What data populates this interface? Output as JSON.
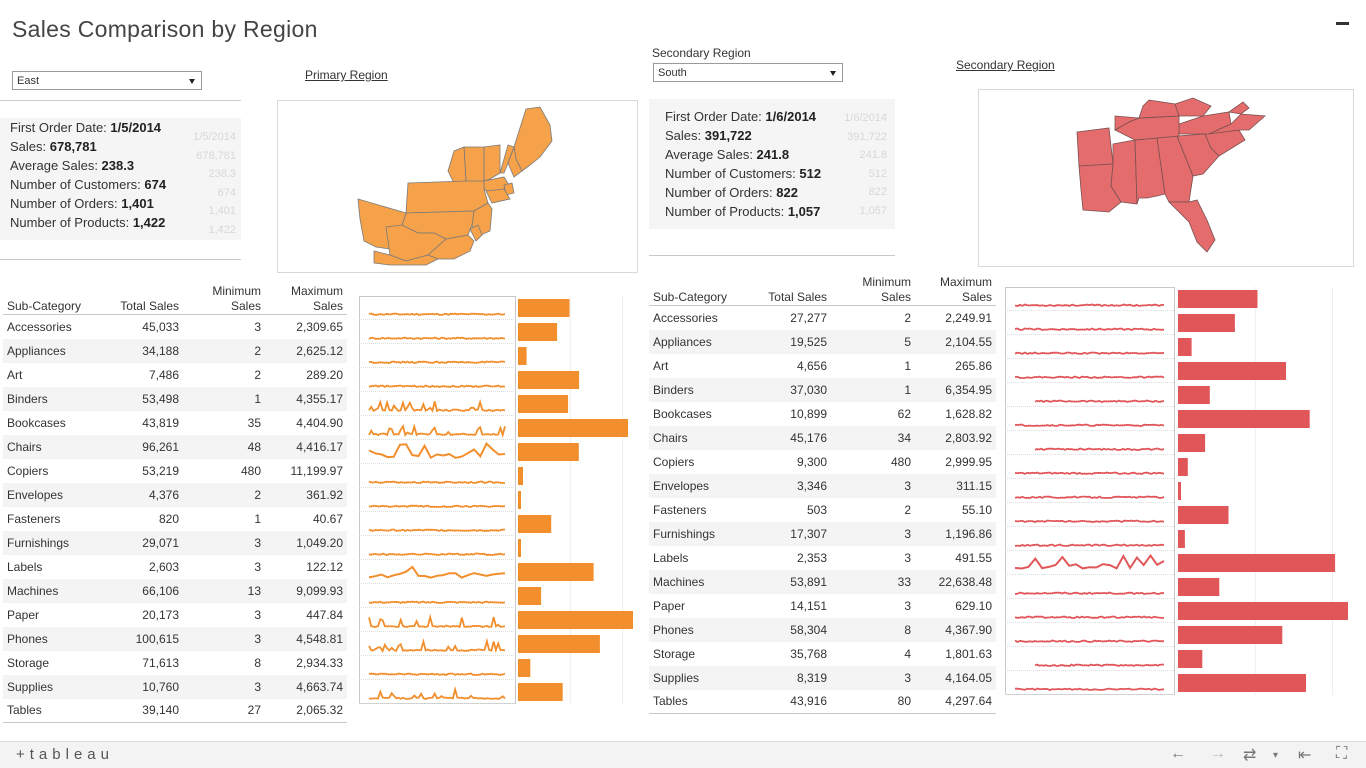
{
  "title": "Sales Comparison by Region",
  "colors": {
    "primary": "#f28e2b",
    "secondary": "#e15759",
    "ghost": "#d8d8d8"
  },
  "primary": {
    "selector_value": "East",
    "link_label": "Primary Region",
    "stats": [
      {
        "label": "First Order Date:",
        "value": "1/5/2014"
      },
      {
        "label": "Sales:",
        "value": "678,781"
      },
      {
        "label": "Average Sales:",
        "value": "238.3"
      },
      {
        "label": "Number of Customers:",
        "value": "674"
      },
      {
        "label": "Number of Orders:",
        "value": "1,401"
      },
      {
        "label": "Number of Products:",
        "value": "1,422"
      }
    ],
    "ghost_values": [
      "1/5/2014",
      "678,781",
      "238.3",
      "674",
      "1,401",
      "1,422"
    ]
  },
  "secondary": {
    "selector_label": "Secondary Region",
    "selector_value": "South",
    "link_label": "Secondary Region",
    "stats": [
      {
        "label": "First Order Date:",
        "value": "1/6/2014"
      },
      {
        "label": "Sales:",
        "value": "391,722"
      },
      {
        "label": "Average Sales:",
        "value": "241.8"
      },
      {
        "label": "Number of Customers:",
        "value": "512"
      },
      {
        "label": "Number of Orders:",
        "value": "822"
      },
      {
        "label": "Number of Products:",
        "value": "1,057"
      }
    ],
    "ghost_values": [
      "1/6/2014",
      "391,722",
      "241.8",
      "512",
      "822",
      "1,057"
    ]
  },
  "table_headers": {
    "subcat": "Sub-Category",
    "total": "Total Sales",
    "min_1": "Minimum",
    "min_2": "Sales",
    "max_1": "Maximum",
    "max_2": "Sales"
  },
  "primary_rows": [
    {
      "name": "Accessories",
      "total": "45,033",
      "min": "3",
      "max": "2,309.65",
      "bar": 45033,
      "spark": "flat"
    },
    {
      "name": "Appliances",
      "total": "34,188",
      "min": "2",
      "max": "2,625.12",
      "bar": 34188,
      "spark": "flat"
    },
    {
      "name": "Art",
      "total": "7,486",
      "min": "2",
      "max": "289.20",
      "bar": 7486,
      "spark": "flat"
    },
    {
      "name": "Binders",
      "total": "53,498",
      "min": "1",
      "max": "4,355.17",
      "bar": 53498,
      "spark": "flat"
    },
    {
      "name": "Bookcases",
      "total": "43,819",
      "min": "35",
      "max": "4,404.90",
      "bar": 43819,
      "spark": "spiky"
    },
    {
      "name": "Chairs",
      "total": "96,261",
      "min": "48",
      "max": "4,416.17",
      "bar": 96261,
      "spark": "spiky"
    },
    {
      "name": "Copiers",
      "total": "53,219",
      "min": "480",
      "max": "11,199.97",
      "bar": 53219,
      "spark": "jagged"
    },
    {
      "name": "Envelopes",
      "total": "4,376",
      "min": "2",
      "max": "361.92",
      "bar": 4376,
      "spark": "flat"
    },
    {
      "name": "Fasteners",
      "total": "820",
      "min": "1",
      "max": "40.67",
      "bar": 820,
      "spark": "flat"
    },
    {
      "name": "Furnishings",
      "total": "29,071",
      "min": "3",
      "max": "1,049.20",
      "bar": 29071,
      "spark": "flat"
    },
    {
      "name": "Labels",
      "total": "2,603",
      "min": "3",
      "max": "122.12",
      "bar": 2603,
      "spark": "flat"
    },
    {
      "name": "Machines",
      "total": "66,106",
      "min": "13",
      "max": "9,099.93",
      "bar": 66106,
      "spark": "jagged"
    },
    {
      "name": "Paper",
      "total": "20,173",
      "min": "3",
      "max": "447.84",
      "bar": 20173,
      "spark": "flat"
    },
    {
      "name": "Phones",
      "total": "100,615",
      "min": "3",
      "max": "4,548.81",
      "bar": 100615,
      "spark": "spiky"
    },
    {
      "name": "Storage",
      "total": "71,613",
      "min": "8",
      "max": "2,934.33",
      "bar": 71613,
      "spark": "spiky"
    },
    {
      "name": "Supplies",
      "total": "10,760",
      "min": "3",
      "max": "4,663.74",
      "bar": 10760,
      "spark": "flat"
    },
    {
      "name": "Tables",
      "total": "39,140",
      "min": "27",
      "max": "2,065.32",
      "bar": 39140,
      "spark": "spiky"
    }
  ],
  "secondary_rows": [
    {
      "name": "Accessories",
      "total": "27,277",
      "min": "2",
      "max": "2,249.91",
      "bar": 27277,
      "spark": "flat"
    },
    {
      "name": "Appliances",
      "total": "19,525",
      "min": "5",
      "max": "2,104.55",
      "bar": 19525,
      "spark": "flat"
    },
    {
      "name": "Art",
      "total": "4,656",
      "min": "1",
      "max": "265.86",
      "bar": 4656,
      "spark": "flat"
    },
    {
      "name": "Binders",
      "total": "37,030",
      "min": "1",
      "max": "6,354.95",
      "bar": 37030,
      "spark": "flat"
    },
    {
      "name": "Bookcases",
      "total": "10,899",
      "min": "62",
      "max": "1,628.82",
      "bar": 10899,
      "spark": "short"
    },
    {
      "name": "Chairs",
      "total": "45,176",
      "min": "34",
      "max": "2,803.92",
      "bar": 45176,
      "spark": "flat"
    },
    {
      "name": "Copiers",
      "total": "9,300",
      "min": "480",
      "max": "2,999.95",
      "bar": 9300,
      "spark": "short"
    },
    {
      "name": "Envelopes",
      "total": "3,346",
      "min": "3",
      "max": "311.15",
      "bar": 3346,
      "spark": "flat"
    },
    {
      "name": "Fasteners",
      "total": "503",
      "min": "2",
      "max": "55.10",
      "bar": 503,
      "spark": "flat"
    },
    {
      "name": "Furnishings",
      "total": "17,307",
      "min": "3",
      "max": "1,196.86",
      "bar": 17307,
      "spark": "flat"
    },
    {
      "name": "Labels",
      "total": "2,353",
      "min": "3",
      "max": "491.55",
      "bar": 2353,
      "spark": "flat"
    },
    {
      "name": "Machines",
      "total": "53,891",
      "min": "33",
      "max": "22,638.48",
      "bar": 53891,
      "spark": "jagged"
    },
    {
      "name": "Paper",
      "total": "14,151",
      "min": "3",
      "max": "629.10",
      "bar": 14151,
      "spark": "flat"
    },
    {
      "name": "Phones",
      "total": "58,304",
      "min": "8",
      "max": "4,367.90",
      "bar": 58304,
      "spark": "flat"
    },
    {
      "name": "Storage",
      "total": "35,768",
      "min": "4",
      "max": "1,801.63",
      "bar": 35768,
      "spark": "flat"
    },
    {
      "name": "Supplies",
      "total": "8,319",
      "min": "3",
      "max": "4,164.05",
      "bar": 8319,
      "spark": "short"
    },
    {
      "name": "Tables",
      "total": "43,916",
      "min": "80",
      "max": "4,297.64",
      "bar": 43916,
      "spark": "flat"
    }
  ],
  "footer": {
    "logo": "+tableau"
  }
}
